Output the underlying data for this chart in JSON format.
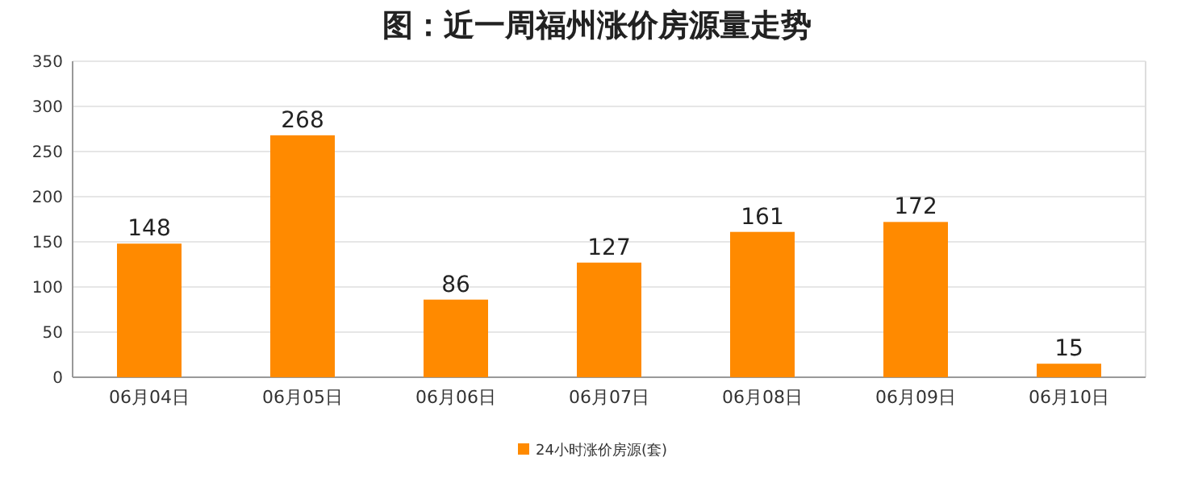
{
  "chart_data": {
    "type": "bar",
    "title": "图：近一周福州涨价房源量走势",
    "categories": [
      "06月04日",
      "06月05日",
      "06月06日",
      "06月07日",
      "06月08日",
      "06月09日",
      "06月10日"
    ],
    "series": [
      {
        "name": "24小时涨价房源(套)",
        "color": "#ff8a00",
        "values": [
          148,
          268,
          86,
          127,
          161,
          172,
          15
        ]
      }
    ],
    "ylim": [
      0,
      350
    ],
    "yticks": [
      0,
      50,
      100,
      150,
      200,
      250,
      300,
      350
    ],
    "grid": "y",
    "legend": "bottom",
    "data_labels": true
  }
}
